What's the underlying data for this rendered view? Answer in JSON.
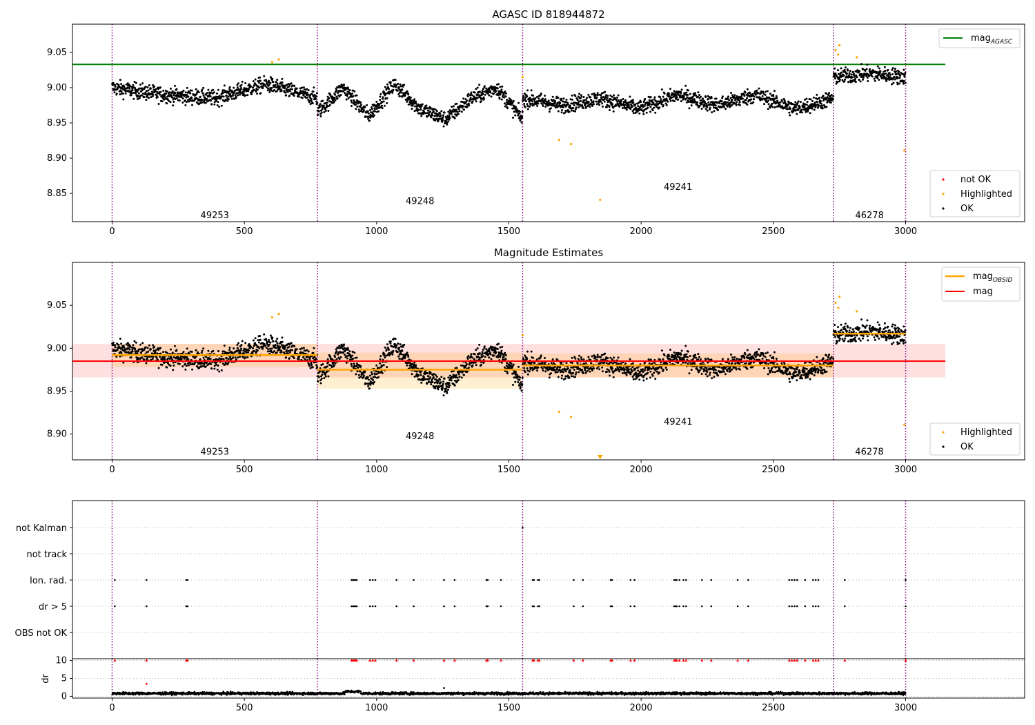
{
  "chart_data": [
    {
      "type": "scatter",
      "title": "AGASC ID 818944872",
      "xlabel": "",
      "ylabel": "",
      "xlim": [
        -150,
        3450
      ],
      "ylim": [
        8.81,
        9.09
      ],
      "xticks": [
        "0",
        "500",
        "1000",
        "1500",
        "2000",
        "2500",
        "3000"
      ],
      "yticks": [
        "8.85",
        "8.90",
        "8.95",
        "9.00",
        "9.05"
      ],
      "legend_upper": {
        "position": "top-right",
        "entries": [
          "mag_AGASC"
        ],
        "label_main": "mag",
        "label_sub": "AGASC"
      },
      "legend_lower": {
        "position": "bottom-right",
        "entries": [
          "not OK",
          "Highlighted",
          "OK"
        ]
      },
      "reference_line": {
        "name": "mag_AGASC",
        "y": 9.033,
        "x": [
          -150,
          3150
        ],
        "color": "#008000"
      },
      "observation_boundaries": [
        0,
        776,
        1552,
        2727,
        3000
      ],
      "observations": [
        {
          "obsid": "49253",
          "x": [
            0,
            776
          ],
          "label_y": 8.82,
          "trend": [
            9.0,
            8.99,
            8.985,
            9.005,
            8.985
          ]
        },
        {
          "obsid": "49248",
          "x": [
            776,
            1552
          ],
          "label_y": 8.84,
          "trend": [
            8.965,
            9.0,
            8.96,
            9.005,
            8.97,
            8.955,
            8.985,
            9.0,
            8.955
          ]
        },
        {
          "obsid": "49241",
          "x": [
            1552,
            2727
          ],
          "label_y": 8.86,
          "trend": [
            8.985,
            8.975,
            8.985,
            8.97,
            8.99,
            8.975,
            8.99,
            8.97,
            8.985
          ]
        },
        {
          "obsid": "46278",
          "x": [
            2727,
            3000
          ],
          "label_y": 8.82,
          "trend": [
            9.015,
            9.02,
            9.015
          ]
        }
      ],
      "highlighted_points": [
        {
          "x": 605,
          "y": 9.036
        },
        {
          "x": 630,
          "y": 9.04
        },
        {
          "x": 1552,
          "y": 9.015
        },
        {
          "x": 1690,
          "y": 8.926
        },
        {
          "x": 1735,
          "y": 8.92
        },
        {
          "x": 1845,
          "y": 8.841
        },
        {
          "x": 2735,
          "y": 9.053
        },
        {
          "x": 2745,
          "y": 9.047
        },
        {
          "x": 2750,
          "y": 9.06
        },
        {
          "x": 2815,
          "y": 9.043
        },
        {
          "x": 2995,
          "y": 8.911
        }
      ],
      "colors": {
        "ok": "#000000",
        "highlighted": "#ffa500",
        "not_ok": "#ff0000",
        "boundary": "#800080"
      }
    },
    {
      "type": "scatter",
      "title": "Magnitude Estimates",
      "xlabel": "",
      "ylabel": "",
      "xlim": [
        -150,
        3450
      ],
      "ylim": [
        8.87,
        9.1
      ],
      "xticks": [
        "0",
        "500",
        "1000",
        "1500",
        "2000",
        "2500",
        "3000"
      ],
      "yticks": [
        "8.90",
        "8.95",
        "9.00",
        "9.05"
      ],
      "legend_upper": {
        "position": "top-right",
        "entries": [
          "mag_OBSID",
          "mag"
        ],
        "label_obs_main": "mag",
        "label_obs_sub": "OBSID",
        "label_mag": "mag"
      },
      "legend_lower": {
        "position": "bottom-right",
        "entries": [
          "Highlighted",
          "OK"
        ]
      },
      "mag": {
        "y": 8.985,
        "band": [
          8.966,
          9.005
        ],
        "x": [
          -150,
          3150
        ],
        "color": "#ff0000"
      },
      "mag_obsid": [
        {
          "obsid": "49253",
          "x": [
            0,
            776
          ],
          "y": 8.992,
          "band": [
            8.978,
            9.005
          ]
        },
        {
          "obsid": "49248",
          "x": [
            776,
            1552
          ],
          "y": 8.975,
          "band": [
            8.953,
            8.995
          ]
        },
        {
          "obsid": "49241",
          "x": [
            1552,
            2727
          ],
          "y": 8.98,
          "band": [
            8.966,
            8.994
          ]
        },
        {
          "obsid": "46278",
          "x": [
            2727,
            3000
          ],
          "y": 9.017,
          "band": [
            9.014,
            9.02
          ]
        }
      ],
      "obs_labels": [
        {
          "text": "49253",
          "x": 388,
          "y": 8.88
        },
        {
          "text": "49248",
          "x": 1164,
          "y": 8.898
        },
        {
          "text": "49241",
          "x": 2140,
          "y": 8.915
        },
        {
          "text": "46278",
          "x": 2863,
          "y": 8.88
        }
      ],
      "colors": {
        "mag_obsid": "#ffa500"
      }
    },
    {
      "type": "scatter",
      "title": "",
      "xlabel": "",
      "ylabel": "",
      "flag_rows": [
        "not Kalman",
        "not track",
        "Ion. rad.",
        "dr > 5",
        "OBS not OK"
      ],
      "flag_points": {
        "not Kalman": [
          1552
        ],
        "not track": [],
        "Ion. rad.": [
          10,
          130,
          280,
          285,
          905,
          910,
          915,
          920,
          925,
          975,
          985,
          995,
          1075,
          1140,
          1255,
          1295,
          1415,
          1420,
          1470,
          1590,
          1595,
          1610,
          1615,
          1745,
          1780,
          1885,
          1890,
          1960,
          1975,
          2125,
          2130,
          2135,
          2145,
          2160,
          2170,
          2230,
          2265,
          2365,
          2405,
          2560,
          2570,
          2580,
          2590,
          2620,
          2650,
          2660,
          2670,
          2770,
          3000
        ],
        "dr > 5": [
          10,
          130,
          280,
          285,
          905,
          910,
          915,
          920,
          925,
          975,
          985,
          995,
          1075,
          1140,
          1255,
          1295,
          1415,
          1420,
          1470,
          1590,
          1595,
          1610,
          1615,
          1745,
          1780,
          1885,
          1890,
          1960,
          1975,
          2125,
          2130,
          2135,
          2145,
          2160,
          2170,
          2230,
          2265,
          2365,
          2405,
          2560,
          2570,
          2580,
          2590,
          2620,
          2650,
          2660,
          2670,
          2770,
          3000
        ],
        "OBS not OK": []
      },
      "xticks": [
        "0",
        "500",
        "1000",
        "1500",
        "2000",
        "2500",
        "3000"
      ],
      "dr_plot": {
        "ylabel": "dr",
        "ylim": [
          -0.5,
          10.5
        ],
        "yticks": [
          "0",
          "5",
          "10"
        ],
        "clipped_value": 10,
        "outliers": [
          {
            "x": 130,
            "y": 3.5
          },
          {
            "x": 1255,
            "y": 2.3
          }
        ],
        "baseline_mean": 0.8
      }
    }
  ]
}
